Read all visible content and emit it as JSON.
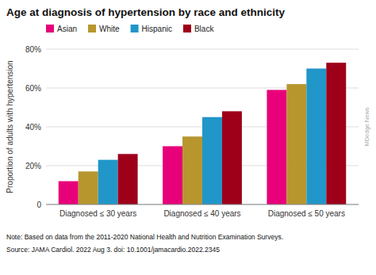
{
  "chart_data": {
    "type": "bar",
    "title": "Age at diagnosis of hypertension by race and ethnicity",
    "ylabel": "Proportion of adults with hypertension",
    "categories": [
      "Diagnosed ≤ 30 years",
      "Diagnosed ≤ 40 years",
      "Diagnosed ≤ 50 years"
    ],
    "series": [
      {
        "name": "Asian",
        "color": "#e8007a",
        "values": [
          12,
          30,
          59
        ]
      },
      {
        "name": "White",
        "color": "#b8962e",
        "values": [
          17,
          35,
          62
        ]
      },
      {
        "name": "Hispanic",
        "color": "#2196c8",
        "values": [
          23,
          45,
          70
        ]
      },
      {
        "name": "Black",
        "color": "#9e001a",
        "values": [
          26,
          48,
          73
        ]
      }
    ],
    "ylim": [
      0,
      80
    ],
    "yticks": [
      0,
      {
        "value": 20,
        "label": "20%"
      },
      {
        "value": 40,
        "label": "40%"
      },
      {
        "value": 60,
        "label": "60%"
      },
      {
        "value": 80,
        "label": "80%"
      }
    ],
    "grid": true,
    "legend": "top-left",
    "annotations": [
      "Note: Based on data from the 2011-2020 National Health and Nutrition Examination Surveys.",
      "Source: JAMA Cardiol. 2022 Aug 3. doi: 10.1001/jamacardio.2022.2345",
      "MDedge News"
    ]
  }
}
